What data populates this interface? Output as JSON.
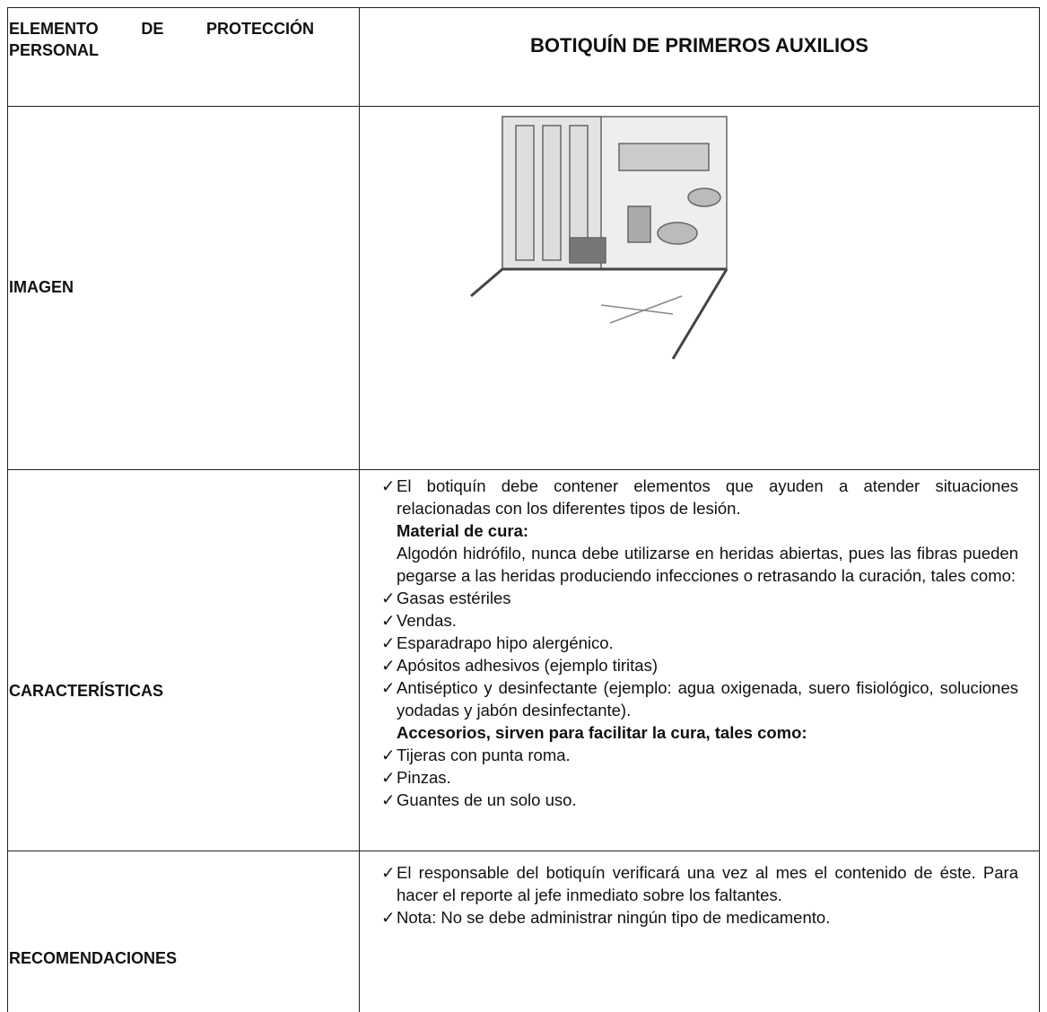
{
  "table": {
    "header": {
      "label": "ELEMENTO DE PROTECCIÓN PERSONAL",
      "title": "BOTIQUÍN DE PRIMEROS AUXILIOS"
    },
    "image_row": {
      "label": "IMAGEN"
    },
    "characteristics": {
      "label": "CARACTERÍSTICAS",
      "intro": "El botiquín debe contener elementos que ayuden a atender situaciones relacionadas con los diferentes tipos de lesión.",
      "heading1": "Material de cura:",
      "paragraph": "Algodón hidrófilo, nunca debe utilizarse en heridas abiertas, pues las fibras pueden pegarse a las heridas produciendo infecciones o retrasando la curación, tales como:",
      "list1": [
        "Gasas estériles",
        "Vendas.",
        "Esparadrapo hipo alergénico.",
        "Apósitos adhesivos (ejemplo tiritas)",
        "Antiséptico y desinfectante (ejemplo: agua oxigenada, suero fisiológico, soluciones yodadas y jabón desinfectante)."
      ],
      "heading2": "Accesorios, sirven para facilitar la cura, tales como:",
      "list2": [
        "Tijeras con punta roma.",
        "Pinzas.",
        "Guantes de un solo uso."
      ]
    },
    "recommendations": {
      "label": "RECOMENDACIONES",
      "items": [
        "El responsable del botiquín verificará una vez al mes el contenido de éste. Para hacer el reporte al jefe inmediato sobre los faltantes.",
        "Nota: No se debe administrar ningún tipo de medicamento."
      ]
    }
  }
}
